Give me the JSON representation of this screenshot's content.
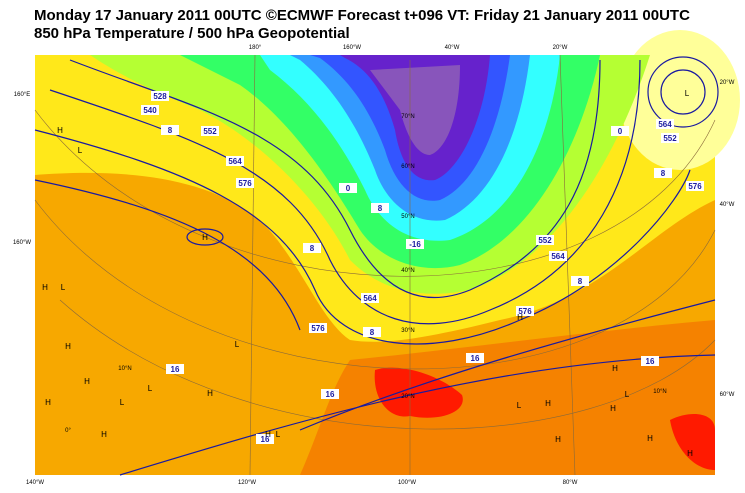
{
  "header": {
    "title_line1": "Monday 17 January 2011 00UTC ©ECMWF Forecast t+096 VT: Friday 21 January 2011 00UTC",
    "title_line2": "850 hPa Temperature / 500 hPa Geopotential"
  },
  "map": {
    "longitude_labels": [
      "180°",
      "160°W",
      "40°W",
      "20°W",
      "20°W",
      "160°E",
      "160°W",
      "40°W",
      "60°W",
      "140°W",
      "120°W",
      "100°W",
      "80°W"
    ],
    "latitude_labels": [
      "70°N",
      "60°N",
      "50°N",
      "40°N",
      "30°N",
      "20°N",
      "10°N",
      "0°",
      "10°N"
    ],
    "contour_labels": [
      "528",
      "540",
      "552",
      "564",
      "576",
      "8",
      "552",
      "564",
      "576",
      "0",
      "8",
      "0",
      "8",
      "-16",
      "564",
      "576",
      "552",
      "564",
      "576",
      "8",
      "8",
      "8",
      "16",
      "16",
      "16",
      "16",
      "16"
    ],
    "pressure_centers": [
      "H",
      "L",
      "H",
      "H",
      "L",
      "H",
      "L",
      "H",
      "L",
      "H",
      "H",
      "L",
      "H",
      "H",
      "L",
      "L",
      "H",
      "L",
      "H",
      "H",
      "H",
      "L",
      "H",
      "H",
      "H"
    ]
  }
}
